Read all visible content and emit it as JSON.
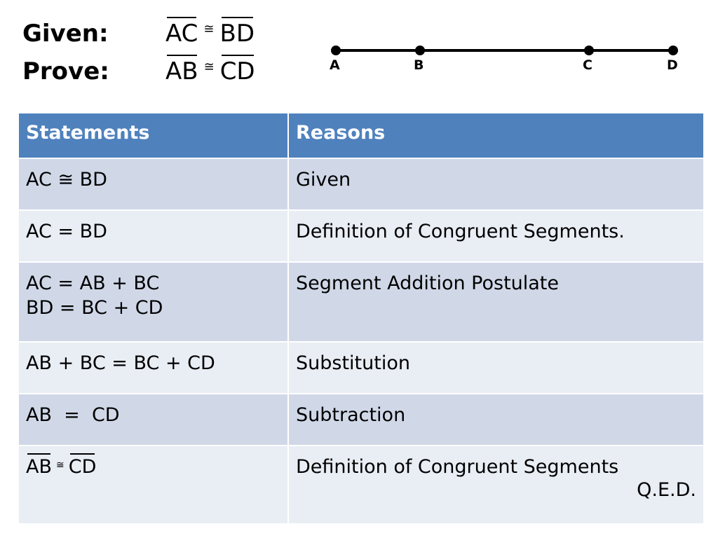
{
  "header": {
    "given_label": "Given:",
    "given_left": "AC",
    "given_rel": "≅",
    "given_right": "BD",
    "prove_label": "Prove:",
    "prove_left": "AB",
    "prove_rel": "≅",
    "prove_right": "CD"
  },
  "diagram": {
    "points": [
      "A",
      "B",
      "C",
      "D"
    ]
  },
  "table": {
    "headers": [
      "Statements",
      "Reasons"
    ],
    "rows": [
      {
        "statement": "AC ≅ BD",
        "reason": "Given"
      },
      {
        "statement": "AC = BD",
        "reason": "Definition of Congruent Segments."
      },
      {
        "statement_lines": [
          "AC = AB + BC",
          "BD = BC + CD"
        ],
        "reason": "Segment Addition Postulate"
      },
      {
        "statement": "AB + BC = BC + CD",
        "reason": "Substitution"
      },
      {
        "statement": "AB  =  CD",
        "reason": "Subtraction"
      },
      {
        "statement_left": "AB",
        "statement_rel": "≅",
        "statement_right": "CD",
        "reason": "Definition of Congruent Segments",
        "note": "Q.E.D."
      }
    ]
  }
}
